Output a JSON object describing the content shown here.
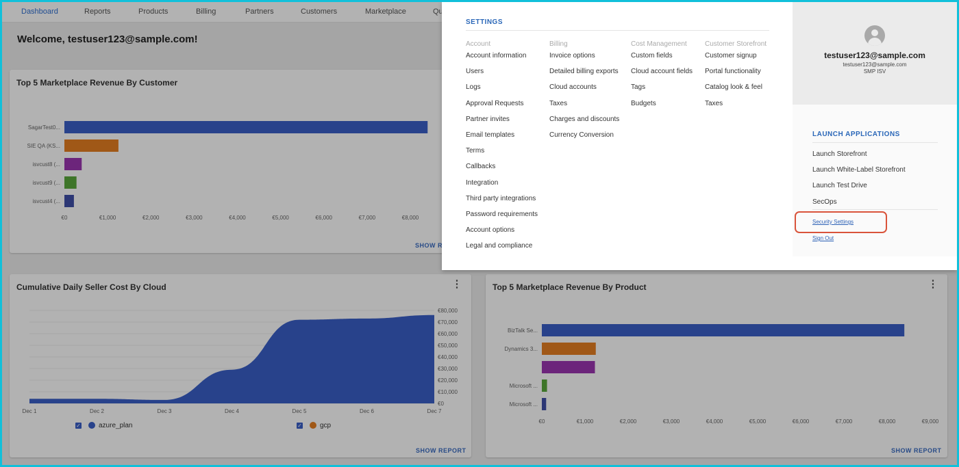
{
  "nav": {
    "items": [
      "Dashboard",
      "Reports",
      "Products",
      "Billing",
      "Partners",
      "Customers",
      "Marketplace",
      "Qu"
    ],
    "active_index": 0
  },
  "welcome": "Welcome, testuser123@sample.com!",
  "cards": {
    "revenue_by_customer": {
      "title": "Top 5 Marketplace Revenue By Customer",
      "show_report": "SHOW RE"
    },
    "daily_seller_cost": {
      "title": "Cumulative Daily Seller Cost By Cloud",
      "show_report": "SHOW REPORT",
      "legend": [
        {
          "label": "azure_plan",
          "color": "#3a5fc7"
        },
        {
          "label": "gcp",
          "color": "#e67e22"
        }
      ]
    },
    "revenue_by_product": {
      "title": "Top 5 Marketplace Revenue By Product",
      "show_report": "SHOW REPORT"
    }
  },
  "chart_data": [
    {
      "type": "bar",
      "orientation": "horizontal",
      "title": "Top 5 Marketplace Revenue By Customer",
      "categories": [
        "SagarTest0...",
        "SIE QA (KS...",
        "isvcust8 (...",
        "isvcust9 (...",
        "isvcust4 (..."
      ],
      "values": [
        8400,
        1250,
        400,
        280,
        220
      ],
      "colors": [
        "#3a5fc7",
        "#e67e22",
        "#9b36b0",
        "#5aa83b",
        "#3f4fa8"
      ],
      "xticks": [
        "€0",
        "€1,000",
        "€2,000",
        "€3,000",
        "€4,000",
        "€5,000",
        "€6,000",
        "€7,000",
        "€8,000"
      ],
      "xlim": [
        0,
        8000
      ]
    },
    {
      "type": "area",
      "title": "Cumulative Daily Seller Cost By Cloud",
      "x": [
        "Dec 1",
        "Dec 2",
        "Dec 3",
        "Dec 4",
        "Dec 5",
        "Dec 6",
        "Dec 7"
      ],
      "series": [
        {
          "name": "azure_plan",
          "values": [
            4000,
            4000,
            3000,
            29000,
            72000,
            73000,
            76000
          ]
        },
        {
          "name": "gcp",
          "values": [
            0,
            0,
            0,
            0,
            0,
            0,
            0
          ]
        }
      ],
      "yticks": [
        "€0",
        "€10,000",
        "€20,000",
        "€30,000",
        "€40,000",
        "€50,000",
        "€60,000",
        "€70,000",
        "€80,000"
      ],
      "ylim": [
        0,
        80000
      ]
    },
    {
      "type": "bar",
      "orientation": "horizontal",
      "title": "Top 5 Marketplace Revenue By Product",
      "categories": [
        "BizTalk Se...",
        "Dynamics 3...",
        "",
        "Microsoft ...",
        "Microsoft ..."
      ],
      "values": [
        8400,
        1250,
        1230,
        120,
        100
      ],
      "colors": [
        "#3a5fc7",
        "#e67e22",
        "#9b36b0",
        "#5aa83b",
        "#3f4fa8"
      ],
      "xticks": [
        "€0",
        "€1,000",
        "€2,000",
        "€3,000",
        "€4,000",
        "€5,000",
        "€6,000",
        "€7,000",
        "€8,000",
        "€9,000"
      ],
      "xlim": [
        0,
        9000
      ]
    }
  ],
  "settings": {
    "title": "SETTINGS",
    "columns": [
      {
        "heading": "Account",
        "items": [
          "Account information",
          "Users",
          "Logs",
          "Approval Requests",
          "Partner invites",
          "Email templates",
          "Terms",
          "Callbacks",
          "Integration",
          "Third party integrations",
          "Password requirements",
          "Account options",
          "Legal and compliance"
        ]
      },
      {
        "heading": "Billing",
        "items": [
          "Invoice options",
          "Detailed billing exports",
          "Cloud accounts",
          "Taxes",
          "Charges and discounts",
          "Currency Conversion"
        ]
      },
      {
        "heading": "Cost Management",
        "items": [
          "Custom fields",
          "Cloud account fields",
          "Tags",
          "Budgets"
        ]
      },
      {
        "heading": "Customer Storefront",
        "items": [
          "Customer signup",
          "Portal functionality",
          "Catalog look & feel",
          "Taxes"
        ]
      }
    ]
  },
  "user": {
    "email": "testuser123@sample.com",
    "email_small": "testuser123@sample.com",
    "role": "SMP ISV"
  },
  "launch": {
    "title": "LAUNCH APPLICATIONS",
    "items": [
      "Launch Storefront",
      "Launch White-Label Storefront",
      "Launch Test Drive",
      "SecOps"
    ]
  },
  "account_links": {
    "security_settings": "Security Settings",
    "sign_out": "Sign Out"
  }
}
